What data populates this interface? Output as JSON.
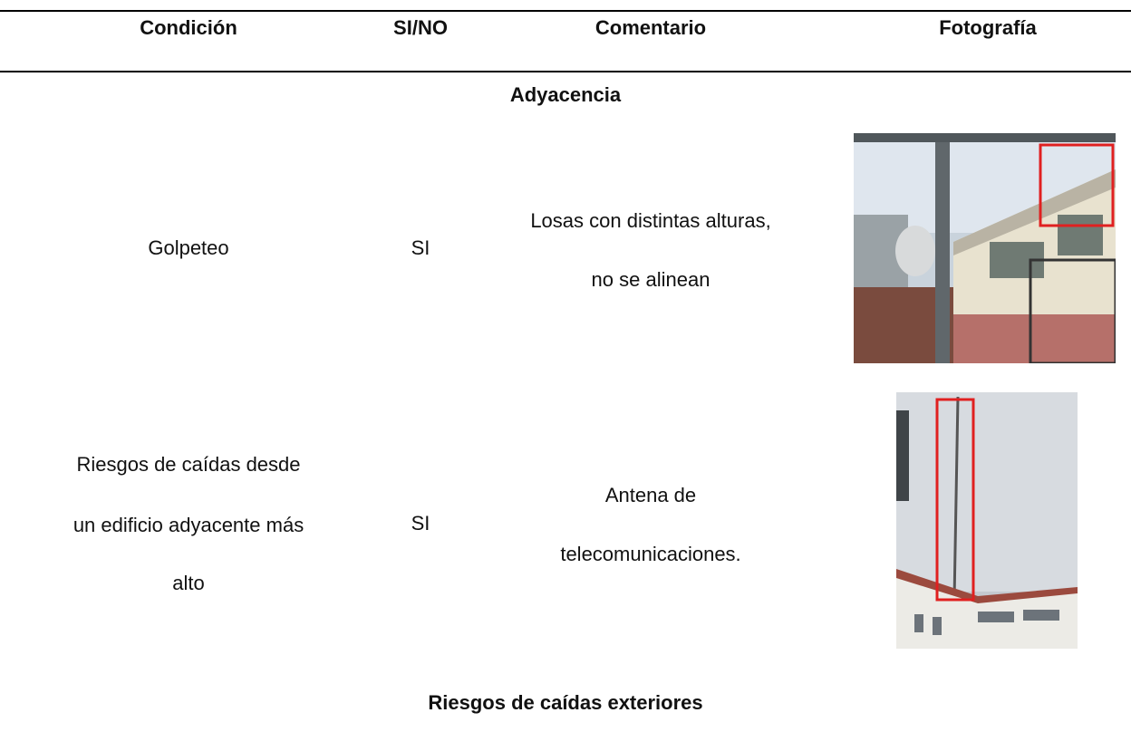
{
  "table": {
    "header": [
      "Condición",
      "SI/NO",
      "Comentario",
      "Fotografía"
    ],
    "sections": [
      {
        "title": "Adyacencia",
        "rows": [
          {
            "condition": [
              "Golpeteo"
            ],
            "answer": "SI",
            "comment": [
              "Losas con distintas alturas,",
              "no se alinean"
            ]
          },
          {
            "condition": [
              "Riesgos de caídas desde",
              "un edificio adyacente más",
              "alto"
            ],
            "answer": "SI",
            "comment": [
              "Antena de",
              "telecomunicaciones."
            ]
          }
        ]
      },
      {
        "title": "Riesgos de caídas exteriores",
        "rows": []
      }
    ]
  }
}
